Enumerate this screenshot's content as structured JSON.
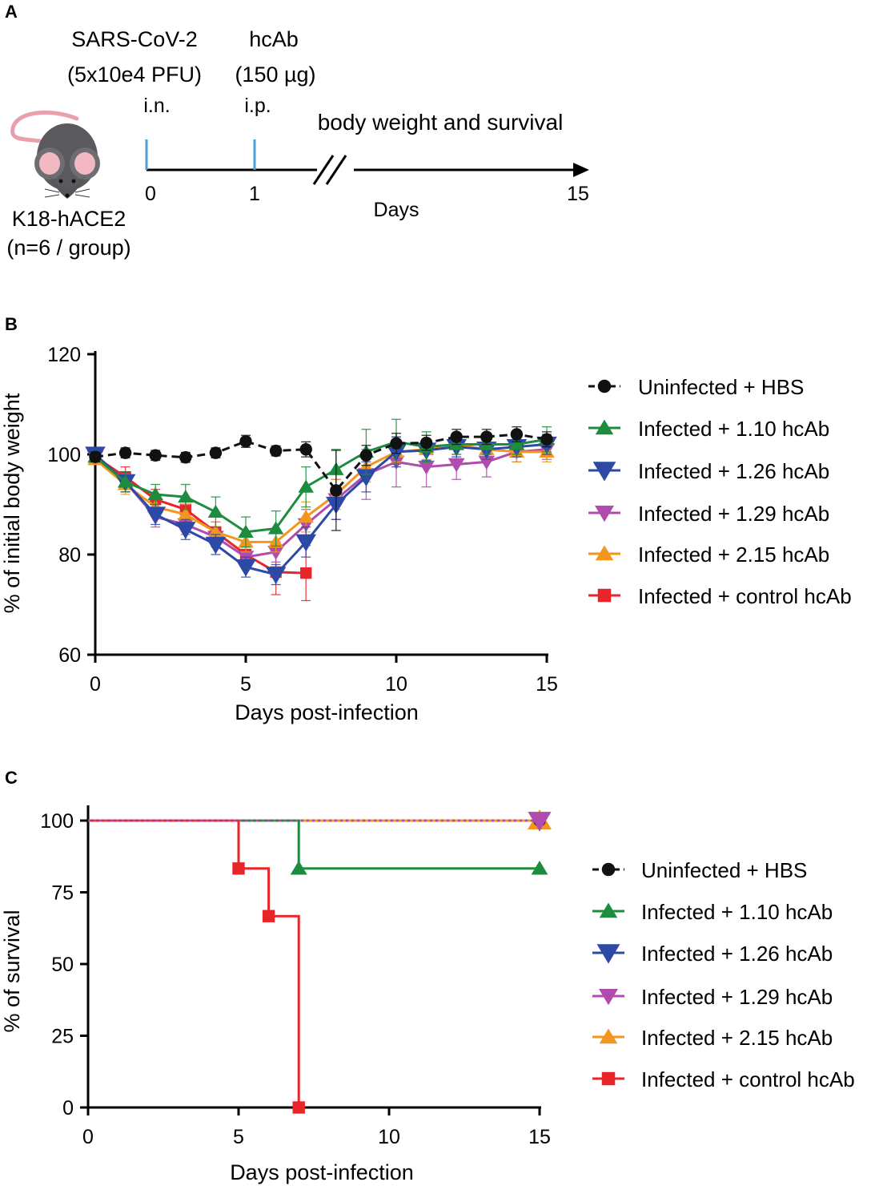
{
  "panel_a": {
    "letter": "A",
    "virus_label": "SARS-CoV-2",
    "virus_dose": "(5x10e4 PFU)",
    "virus_route": "i.n.",
    "ab_label": "hcAb",
    "ab_dose": "(150 µg)",
    "ab_route": "i.p.",
    "readout": "body weight and survival",
    "tick_0": "0",
    "tick_1": "1",
    "tick_15": "15",
    "axis_label": "Days",
    "model": "K18-hACE2",
    "group_size": "(n=6 / group)"
  },
  "colors": {
    "uninfected": "#111111",
    "ab110": "#1e8c3e",
    "ab126": "#2c49a6",
    "ab129": "#b04cae",
    "ab215": "#f3961e",
    "control": "#e8262a",
    "timeline_mark": "#4a9fd8"
  },
  "chart_data": [
    {
      "panel": "B",
      "type": "line",
      "title": "",
      "xlabel": "Days post-infection",
      "ylabel": "% of initial body weight",
      "xlim": [
        0,
        15
      ],
      "ylim": [
        60,
        120
      ],
      "xticks": [
        "0",
        "5",
        "10",
        "15"
      ],
      "yticks": [
        "60",
        "80",
        "100",
        "120"
      ],
      "legend_position": "right",
      "series": [
        {
          "key": "uninfected",
          "name": "Uninfected + HBS",
          "marker": "circle",
          "dashed": true,
          "x": [
            0,
            1,
            2,
            3,
            4,
            5,
            6,
            7,
            8,
            9,
            10,
            11,
            12,
            13,
            14,
            15
          ],
          "y": [
            99.5,
            100.3,
            99.8,
            99.4,
            100.3,
            102.6,
            100.7,
            101,
            92.8,
            99.8,
            102.2,
            102.3,
            103.5,
            103.5,
            104,
            103
          ],
          "err": [
            1,
            1,
            1,
            1,
            1,
            1.2,
            1,
            1.5,
            8,
            2,
            2,
            1.5,
            1.5,
            1.5,
            1.5,
            1.5
          ]
        },
        {
          "key": "ab110",
          "name": "Infected + 1.10 hcAb",
          "marker": "triangle-up",
          "dashed": false,
          "x": [
            0,
            1,
            2,
            3,
            4,
            5,
            6,
            7,
            8,
            9,
            10,
            11,
            12,
            13,
            14,
            15
          ],
          "y": [
            99.5,
            94.5,
            92,
            91.5,
            88.5,
            84.5,
            85.2,
            93.5,
            97,
            100.5,
            102.5,
            101.5,
            102,
            102,
            102,
            103
          ],
          "err": [
            1,
            2,
            2,
            2.5,
            3,
            3,
            3.5,
            4,
            4,
            4.5,
            4.5,
            3,
            2,
            2,
            2,
            2.5
          ]
        },
        {
          "key": "ab126",
          "name": "Infected + 1.26 hcAb",
          "marker": "triangle-down",
          "dashed": false,
          "x": [
            0,
            1,
            2,
            3,
            4,
            5,
            6,
            7,
            8,
            9,
            10,
            11,
            12,
            13,
            14,
            15
          ],
          "y": [
            100,
            94.5,
            88,
            85,
            82,
            77.5,
            76,
            82.5,
            90,
            95.5,
            100.5,
            100.8,
            101.5,
            101,
            101.5,
            102
          ],
          "err": [
            1,
            2,
            2,
            2,
            2,
            2,
            2,
            3,
            3,
            3,
            3,
            2,
            2,
            2,
            2,
            2
          ]
        },
        {
          "key": "ab129",
          "name": "Infected + 1.29 hcAb",
          "marker": "triangle-down",
          "dashed": false,
          "x": [
            0,
            1,
            2,
            3,
            4,
            5,
            6,
            7,
            8,
            9,
            10,
            11,
            12,
            13,
            14,
            15
          ],
          "y": [
            99.5,
            94.5,
            87.5,
            86,
            83.5,
            79.5,
            80.5,
            86,
            91,
            96,
            98.5,
            97.5,
            98,
            98.5,
            100.5,
            101
          ],
          "err": [
            1,
            2,
            2,
            2,
            2,
            2,
            2,
            3,
            4,
            5,
            5,
            4,
            3,
            3,
            2,
            2
          ]
        },
        {
          "key": "ab215",
          "name": "Infected + 2.15 hcAb",
          "marker": "triangle-up",
          "dashed": false,
          "x": [
            0,
            1,
            2,
            3,
            4,
            5,
            6,
            7,
            8,
            9,
            10,
            11,
            12,
            13,
            14,
            15
          ],
          "y": [
            99,
            94,
            89.5,
            88,
            84.5,
            82.5,
            82.5,
            87.5,
            92,
            97.5,
            100.5,
            101,
            102,
            101,
            100.5,
            100.5
          ],
          "err": [
            1,
            2,
            2,
            2,
            2,
            2,
            2,
            3,
            3,
            3,
            2,
            2,
            2,
            2,
            2,
            2
          ]
        },
        {
          "key": "control",
          "name": "Infected + control hcAb",
          "marker": "square",
          "dashed": false,
          "x": [
            0,
            1,
            2,
            3,
            4,
            5,
            6,
            7
          ],
          "y": [
            99.5,
            95.5,
            91,
            89,
            84.5,
            80,
            76.5,
            76.3
          ],
          "err": [
            1,
            2,
            2,
            2,
            2,
            2.5,
            4.5,
            5.5
          ]
        }
      ]
    },
    {
      "panel": "C",
      "type": "line",
      "subtype": "kaplan-meier",
      "title": "",
      "xlabel": "Days post-infection",
      "ylabel": "% of survival",
      "xlim": [
        0,
        15
      ],
      "ylim": [
        0,
        100
      ],
      "xticks": [
        "0",
        "5",
        "10",
        "15"
      ],
      "yticks": [
        "0",
        "25",
        "50",
        "75",
        "100"
      ],
      "legend_position": "right",
      "series": [
        {
          "key": "uninfected",
          "name": "Uninfected + HBS",
          "marker": "circle",
          "dotted": true,
          "steps": [
            [
              0,
              100
            ],
            [
              15,
              100
            ]
          ],
          "markers": [
            [
              15,
              100
            ]
          ]
        },
        {
          "key": "ab110",
          "name": "Infected + 1.10 hcAb",
          "marker": "triangle-up",
          "dotted": false,
          "steps": [
            [
              0,
              100
            ],
            [
              7,
              100
            ],
            [
              7,
              83.3
            ],
            [
              15,
              83.3
            ]
          ],
          "markers": [
            [
              7,
              83.3
            ],
            [
              15,
              83.3
            ]
          ]
        },
        {
          "key": "ab126",
          "name": "Infected + 1.26 hcAb",
          "marker": "triangle-down",
          "dotted": false,
          "steps": [
            [
              0,
              100
            ],
            [
              15,
              100
            ]
          ],
          "markers": [
            [
              15,
              100
            ]
          ]
        },
        {
          "key": "ab129",
          "name": "Infected + 1.29 hcAb",
          "marker": "triangle-down",
          "dotted": true,
          "steps": [
            [
              0,
              100
            ],
            [
              15,
              100
            ]
          ],
          "markers": [
            [
              15,
              100
            ]
          ]
        },
        {
          "key": "ab215",
          "name": "Infected + 2.15 hcAb",
          "marker": "triangle-up",
          "dotted": false,
          "steps": [
            [
              0,
              100
            ],
            [
              15,
              100
            ]
          ],
          "markers": [
            [
              15,
              100
            ]
          ]
        },
        {
          "key": "control",
          "name": "Infected + control hcAb",
          "marker": "square",
          "dotted": false,
          "steps": [
            [
              0,
              100
            ],
            [
              5,
              100
            ],
            [
              5,
              83.3
            ],
            [
              6,
              83.3
            ],
            [
              6,
              66.7
            ],
            [
              7,
              66.7
            ],
            [
              7,
              0
            ]
          ],
          "markers": [
            [
              5,
              83.3
            ],
            [
              6,
              66.7
            ],
            [
              7,
              0
            ]
          ]
        }
      ]
    }
  ]
}
